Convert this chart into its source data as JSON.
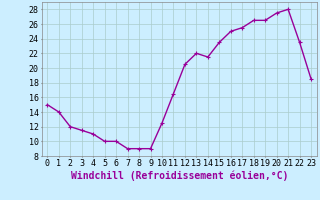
{
  "x": [
    0,
    1,
    2,
    3,
    4,
    5,
    6,
    7,
    8,
    9,
    10,
    11,
    12,
    13,
    14,
    15,
    16,
    17,
    18,
    19,
    20,
    21,
    22,
    23
  ],
  "y": [
    15,
    14,
    12,
    11.5,
    11,
    10,
    10,
    9,
    9,
    9,
    12.5,
    16.5,
    20.5,
    22,
    21.5,
    23.5,
    25,
    25.5,
    26.5,
    26.5,
    27.5,
    28,
    23.5,
    18.5
  ],
  "line_color": "#990099",
  "marker": "+",
  "marker_size": 3,
  "bg_color": "#cceeff",
  "grid_color": "#aacccc",
  "xlabel": "Windchill (Refroidissement éolien,°C)",
  "xlabel_fontsize": 7,
  "ylim": [
    8,
    29
  ],
  "yticks": [
    8,
    10,
    12,
    14,
    16,
    18,
    20,
    22,
    24,
    26,
    28
  ],
  "xticks": [
    0,
    1,
    2,
    3,
    4,
    5,
    6,
    7,
    8,
    9,
    10,
    11,
    12,
    13,
    14,
    15,
    16,
    17,
    18,
    19,
    20,
    21,
    22,
    23
  ],
  "tick_fontsize": 6,
  "line_width": 1.0
}
